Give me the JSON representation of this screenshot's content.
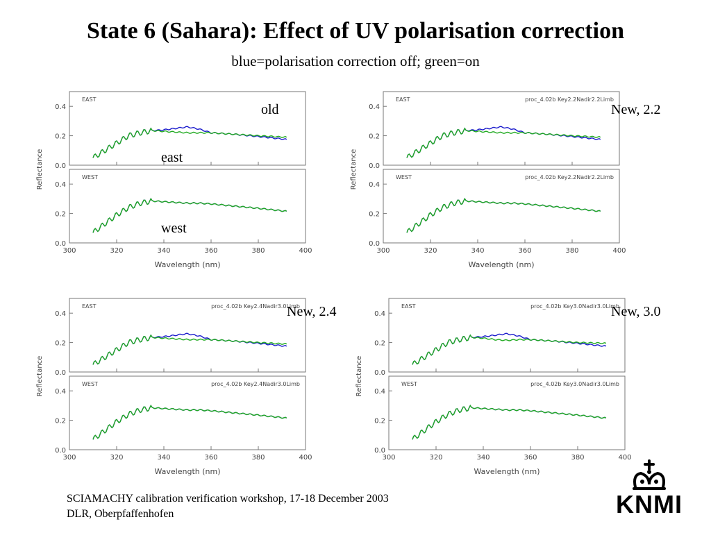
{
  "title": "State 6 (Sahara): Effect of UV polarisation correction",
  "subtitle": "blue=polarisation correction off; green=on",
  "colors": {
    "correction_off": "#1a1acc",
    "correction_on": "#22aa22",
    "axis": "#777777",
    "text": "#000000"
  },
  "labels": {
    "old": "old",
    "east": "east",
    "west": "west",
    "new22": "New, 2.2",
    "new24": "New, 2.4",
    "new30": "New, 3.0"
  },
  "footer": {
    "line1": "SCIAMACHY calibration verification workshop, 17-18 December 2003",
    "line2": "DLR, Oberpfaffenhofen"
  },
  "logo": {
    "text": "KNMI",
    "icon": "crown-icon"
  },
  "chart_data": [
    {
      "type": "line",
      "version_label": "",
      "xlabel": "Wavelength (nm)",
      "ylabel": "Reflectance",
      "xlim": [
        300,
        400
      ],
      "xticks": [
        "300",
        "320",
        "340",
        "360",
        "380",
        "400"
      ],
      "panels": [
        {
          "name": "EAST",
          "ylim": [
            0.0,
            0.5
          ],
          "yticks": [
            "0.0",
            "0.2",
            "0.4"
          ],
          "series": [
            {
              "color": "blue",
              "x": [
                310,
                320,
                325,
                330,
                335,
                340,
                345,
                350,
                355,
                360,
                370,
                380,
                392
              ],
              "values": [
                0.05,
                0.15,
                0.2,
                0.22,
                0.235,
                0.24,
                0.25,
                0.26,
                0.245,
                0.22,
                0.21,
                0.195,
                0.175
              ]
            },
            {
              "color": "green",
              "x": [
                310,
                320,
                325,
                330,
                335,
                340,
                345,
                350,
                355,
                360,
                370,
                380,
                392
              ],
              "values": [
                0.05,
                0.15,
                0.2,
                0.22,
                0.235,
                0.23,
                0.225,
                0.22,
                0.22,
                0.22,
                0.21,
                0.2,
                0.19
              ]
            }
          ]
        },
        {
          "name": "WEST",
          "ylim": [
            0.0,
            0.5
          ],
          "yticks": [
            "0.0",
            "0.2",
            "0.4"
          ],
          "series": [
            {
              "color": "blue",
              "x": [
                310,
                315,
                320,
                325,
                330,
                335,
                340,
                345,
                350,
                355,
                360,
                370,
                380,
                392
              ],
              "values": [
                0.07,
                0.13,
                0.19,
                0.24,
                0.27,
                0.285,
                0.28,
                0.275,
                0.27,
                0.27,
                0.265,
                0.25,
                0.235,
                0.215
              ]
            },
            {
              "color": "green",
              "x": [
                310,
                315,
                320,
                325,
                330,
                335,
                340,
                345,
                350,
                355,
                360,
                370,
                380,
                392
              ],
              "values": [
                0.07,
                0.13,
                0.19,
                0.24,
                0.27,
                0.285,
                0.28,
                0.275,
                0.27,
                0.27,
                0.265,
                0.25,
                0.235,
                0.215
              ]
            }
          ]
        }
      ]
    },
    {
      "type": "line",
      "version_label": "proc_4.02b  Key2.2Nadir2.2Limb",
      "xlabel": "Wavelength (nm)",
      "ylabel": "Reflectance",
      "xlim": [
        300,
        400
      ],
      "xticks": [
        "300",
        "320",
        "340",
        "360",
        "380",
        "400"
      ],
      "panels": [
        {
          "name": "EAST",
          "ylim": [
            0.0,
            0.5
          ],
          "yticks": [
            "0.0",
            "0.2",
            "0.4"
          ],
          "series": [
            {
              "color": "blue",
              "x": [
                310,
                320,
                325,
                330,
                335,
                340,
                345,
                350,
                355,
                360,
                370,
                380,
                392
              ],
              "values": [
                0.05,
                0.15,
                0.2,
                0.22,
                0.235,
                0.24,
                0.25,
                0.26,
                0.245,
                0.22,
                0.21,
                0.195,
                0.175
              ]
            },
            {
              "color": "green",
              "x": [
                310,
                320,
                325,
                330,
                335,
                340,
                345,
                350,
                355,
                360,
                370,
                380,
                392
              ],
              "values": [
                0.05,
                0.15,
                0.2,
                0.22,
                0.235,
                0.23,
                0.225,
                0.22,
                0.22,
                0.22,
                0.21,
                0.2,
                0.19
              ]
            }
          ]
        },
        {
          "name": "WEST",
          "ylim": [
            0.0,
            0.5
          ],
          "yticks": [
            "0.0",
            "0.2",
            "0.4"
          ],
          "series": [
            {
              "color": "blue",
              "x": [
                310,
                315,
                320,
                325,
                330,
                335,
                340,
                345,
                350,
                355,
                360,
                370,
                380,
                392
              ],
              "values": [
                0.07,
                0.13,
                0.19,
                0.24,
                0.27,
                0.285,
                0.28,
                0.275,
                0.27,
                0.27,
                0.265,
                0.25,
                0.235,
                0.215
              ]
            },
            {
              "color": "green",
              "x": [
                310,
                315,
                320,
                325,
                330,
                335,
                340,
                345,
                350,
                355,
                360,
                370,
                380,
                392
              ],
              "values": [
                0.07,
                0.13,
                0.19,
                0.24,
                0.27,
                0.285,
                0.28,
                0.275,
                0.27,
                0.27,
                0.265,
                0.25,
                0.235,
                0.215
              ]
            }
          ]
        }
      ]
    },
    {
      "type": "line",
      "version_label": "proc_4.02b  Key2.4Nadir3.0Limb",
      "xlabel": "Wavelength (nm)",
      "ylabel": "Reflectance",
      "xlim": [
        300,
        400
      ],
      "xticks": [
        "300",
        "320",
        "340",
        "360",
        "380",
        "400"
      ],
      "panels": [
        {
          "name": "EAST",
          "ylim": [
            0.0,
            0.5
          ],
          "yticks": [
            "0.0",
            "0.2",
            "0.4"
          ],
          "series": [
            {
              "color": "blue",
              "x": [
                310,
                320,
                325,
                330,
                335,
                340,
                345,
                350,
                355,
                360,
                370,
                380,
                392
              ],
              "values": [
                0.05,
                0.15,
                0.2,
                0.22,
                0.235,
                0.24,
                0.25,
                0.26,
                0.245,
                0.22,
                0.21,
                0.195,
                0.175
              ]
            },
            {
              "color": "green",
              "x": [
                310,
                320,
                325,
                330,
                335,
                340,
                345,
                350,
                355,
                360,
                370,
                380,
                392
              ],
              "values": [
                0.05,
                0.15,
                0.2,
                0.22,
                0.235,
                0.23,
                0.225,
                0.22,
                0.22,
                0.22,
                0.21,
                0.2,
                0.19
              ]
            }
          ]
        },
        {
          "name": "WEST",
          "ylim": [
            0.0,
            0.5
          ],
          "yticks": [
            "0.0",
            "0.2",
            "0.4"
          ],
          "series": [
            {
              "color": "blue",
              "x": [
                310,
                315,
                320,
                325,
                330,
                335,
                340,
                345,
                350,
                355,
                360,
                370,
                380,
                392
              ],
              "values": [
                0.07,
                0.13,
                0.19,
                0.24,
                0.27,
                0.285,
                0.28,
                0.275,
                0.27,
                0.27,
                0.265,
                0.25,
                0.235,
                0.215
              ]
            },
            {
              "color": "green",
              "x": [
                310,
                315,
                320,
                325,
                330,
                335,
                340,
                345,
                350,
                355,
                360,
                370,
                380,
                392
              ],
              "values": [
                0.07,
                0.13,
                0.19,
                0.24,
                0.27,
                0.285,
                0.28,
                0.275,
                0.27,
                0.27,
                0.265,
                0.25,
                0.235,
                0.215
              ]
            }
          ]
        }
      ]
    },
    {
      "type": "line",
      "version_label": "proc_4.02b  Key3.0Nadir3.0Limb",
      "xlabel": "Wavelength (nm)",
      "ylabel": "Reflectance",
      "xlim": [
        300,
        400
      ],
      "xticks": [
        "300",
        "320",
        "340",
        "360",
        "380",
        "400"
      ],
      "panels": [
        {
          "name": "EAST",
          "ylim": [
            0.0,
            0.5
          ],
          "yticks": [
            "0.0",
            "0.2",
            "0.4"
          ],
          "series": [
            {
              "color": "blue",
              "x": [
                310,
                320,
                325,
                330,
                335,
                340,
                345,
                350,
                355,
                360,
                370,
                380,
                392
              ],
              "values": [
                0.05,
                0.15,
                0.2,
                0.22,
                0.235,
                0.24,
                0.25,
                0.26,
                0.245,
                0.22,
                0.21,
                0.195,
                0.175
              ]
            },
            {
              "color": "green",
              "x": [
                310,
                320,
                325,
                330,
                335,
                340,
                345,
                350,
                355,
                360,
                370,
                380,
                392
              ],
              "values": [
                0.05,
                0.15,
                0.2,
                0.22,
                0.235,
                0.23,
                0.22,
                0.215,
                0.22,
                0.22,
                0.21,
                0.2,
                0.195
              ]
            }
          ]
        },
        {
          "name": "WEST",
          "ylim": [
            0.0,
            0.5
          ],
          "yticks": [
            "0.0",
            "0.2",
            "0.4"
          ],
          "series": [
            {
              "color": "blue",
              "x": [
                310,
                315,
                320,
                325,
                330,
                335,
                340,
                345,
                350,
                355,
                360,
                370,
                380,
                392
              ],
              "values": [
                0.07,
                0.13,
                0.19,
                0.24,
                0.27,
                0.285,
                0.28,
                0.275,
                0.27,
                0.27,
                0.265,
                0.25,
                0.235,
                0.215
              ]
            },
            {
              "color": "green",
              "x": [
                310,
                315,
                320,
                325,
                330,
                335,
                340,
                345,
                350,
                355,
                360,
                370,
                380,
                392
              ],
              "values": [
                0.07,
                0.13,
                0.19,
                0.24,
                0.27,
                0.285,
                0.28,
                0.275,
                0.27,
                0.27,
                0.265,
                0.25,
                0.235,
                0.215
              ]
            }
          ]
        }
      ]
    }
  ]
}
